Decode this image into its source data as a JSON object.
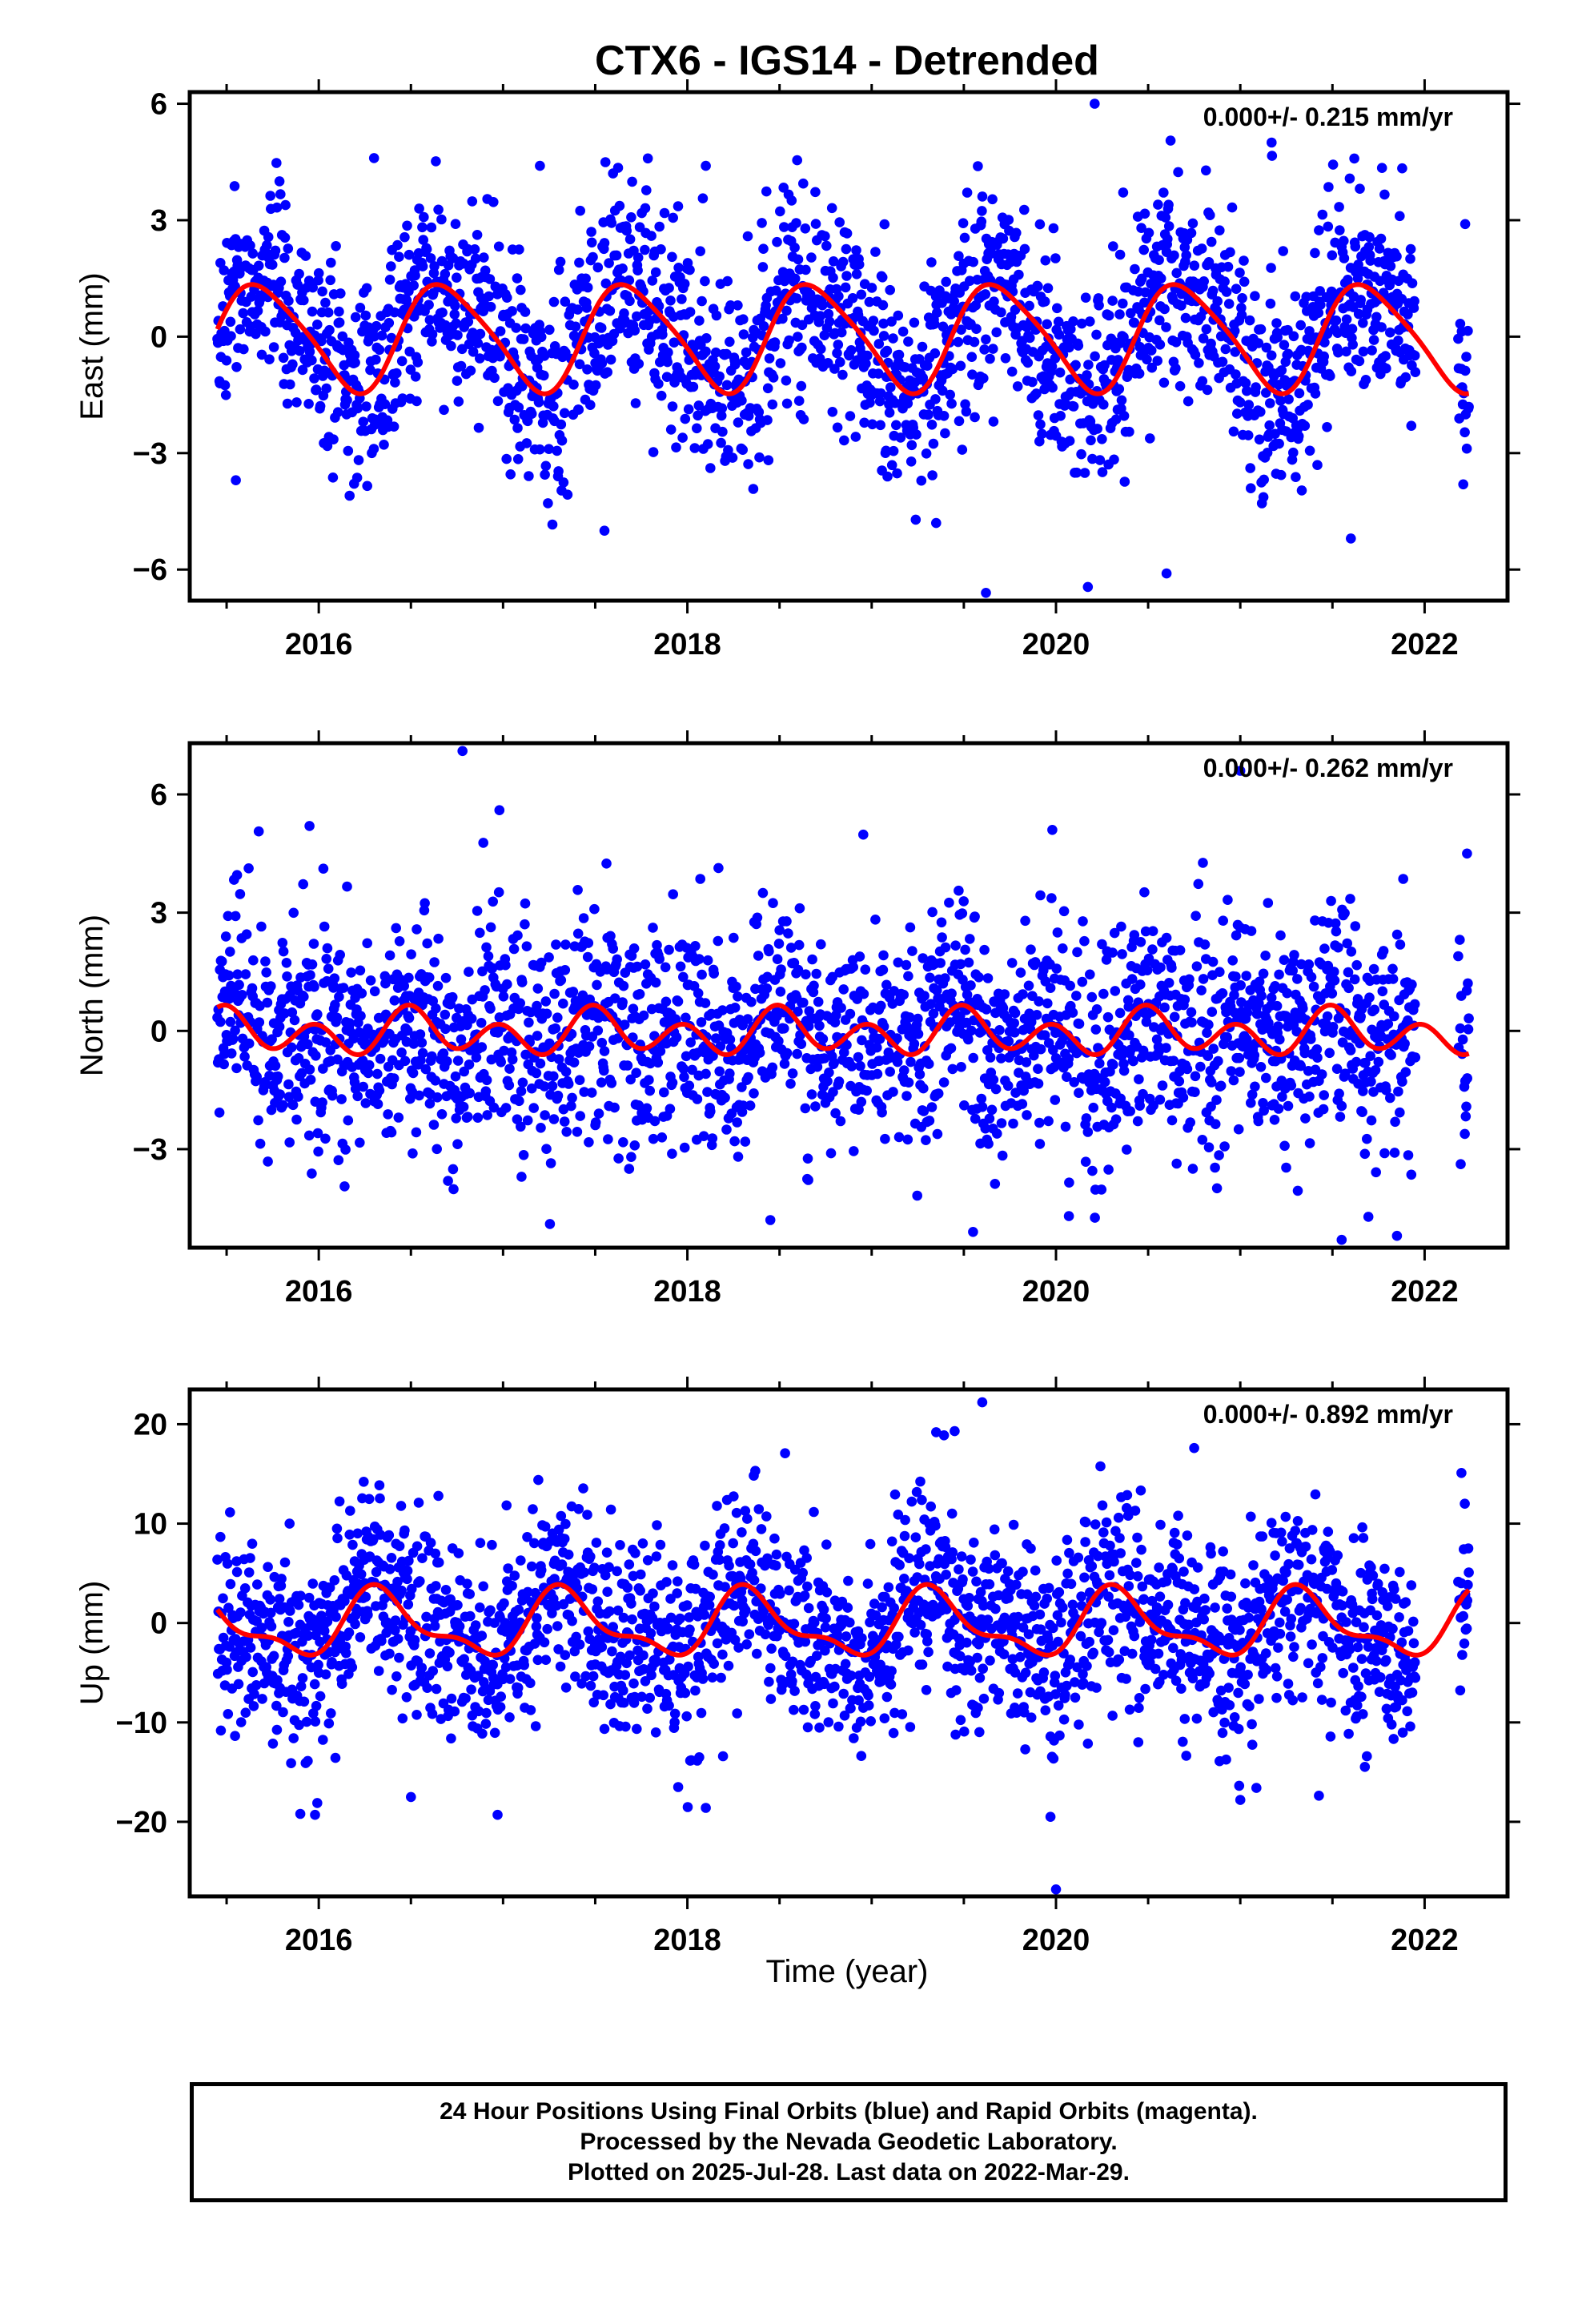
{
  "title": "CTX6 - IGS14 - Detrended",
  "x_label": "Time (year)",
  "footer": {
    "line1": "24 Hour Positions Using Final Orbits (blue) and Rapid Orbits (magenta).",
    "line2": "Processed by the Nevada Geodetic Laboratory.",
    "line3": "Plotted on 2025-Jul-28. Last data on 2022-Mar-29."
  },
  "colors": {
    "points": "#0000ff",
    "model": "#ff0000",
    "axes": "#000000"
  },
  "chart_data": [
    {
      "type": "scatter",
      "ylabel": "East (mm)",
      "rate_text": "0.000+/- 0.215 mm/yr",
      "xlim": [
        2015.3,
        2022.45
      ],
      "ylim": [
        -6.8,
        6.3
      ],
      "xticks": [
        2016,
        2018,
        2020,
        2022
      ],
      "yticks": [
        -6,
        -3,
        0,
        3,
        6
      ],
      "ytick_labels": [
        "−6",
        "−3",
        "0",
        "3",
        "6"
      ],
      "data_range": [
        2015.45,
        2022.24
      ],
      "scatter_sd": 1.5,
      "model": {
        "name": "seasonal fit",
        "offset": 0,
        "annual_cos": -0.5,
        "annual_sin": -1.25,
        "semi_cos": 0.2,
        "semi_sin": 0.1
      },
      "highlighted_points": [
        [
          2015.55,
          -3.7
        ],
        [
          2016.3,
          4.6
        ],
        [
          2017.2,
          4.4
        ],
        [
          2017.55,
          -5.0
        ],
        [
          2018.1,
          4.4
        ],
        [
          2019.35,
          -4.8
        ],
        [
          2019.62,
          -6.6
        ],
        [
          2020.21,
          6.0
        ],
        [
          2020.6,
          -6.1
        ],
        [
          2021.17,
          5.0
        ],
        [
          2021.6,
          -5.2
        ],
        [
          2022.22,
          2.9
        ]
      ]
    },
    {
      "type": "scatter",
      "ylabel": "North (mm)",
      "rate_text": "0.000+/- 0.262 mm/yr",
      "xlim": [
        2015.3,
        2022.45
      ],
      "ylim": [
        -5.5,
        7.3
      ],
      "xticks": [
        2016,
        2018,
        2020,
        2022
      ],
      "yticks": [
        -3,
        0,
        3,
        6
      ],
      "ytick_labels": [
        "−3",
        "0",
        "3",
        "6"
      ],
      "data_range": [
        2015.45,
        2022.24
      ],
      "scatter_sd": 1.6,
      "model": {
        "name": "seasonal fit",
        "offset": -0.05,
        "annual_cos": -0.25,
        "annual_sin": -0.05,
        "semi_cos": 0.45,
        "semi_sin": -0.1
      },
      "highlighted_points": [
        [
          2015.95,
          5.2
        ],
        [
          2016.78,
          7.1
        ],
        [
          2016.98,
          5.6
        ],
        [
          2017.1,
          -3.7
        ],
        [
          2018.45,
          -4.8
        ],
        [
          2019.55,
          -5.1
        ],
        [
          2019.98,
          5.1
        ],
        [
          2020.07,
          -4.7
        ],
        [
          2021.0,
          6.6
        ],
        [
          2021.55,
          -5.3
        ],
        [
          2021.85,
          -5.2
        ],
        [
          2022.23,
          4.5
        ]
      ]
    },
    {
      "type": "scatter",
      "ylabel": "Up (mm)",
      "rate_text": "0.000+/- 0.892 mm/yr",
      "xlim": [
        2015.3,
        2022.45
      ],
      "ylim": [
        -27.5,
        23.5
      ],
      "xticks": [
        2016,
        2018,
        2020,
        2022
      ],
      "yticks": [
        -20,
        -10,
        0,
        10,
        20
      ],
      "ytick_labels": [
        "−20",
        "−10",
        "0",
        "10",
        "20"
      ],
      "data_range": [
        2015.45,
        2022.24
      ],
      "scatter_sd": 5.5,
      "model": {
        "name": "seasonal fit",
        "offset": -0.2,
        "annual_cos": -1.6,
        "annual_sin": 2.5,
        "semi_cos": -1.2,
        "semi_sin": -0.4
      },
      "highlighted_points": [
        [
          2015.9,
          -19.2
        ],
        [
          2015.98,
          -19.3
        ],
        [
          2016.5,
          -17.5
        ],
        [
          2016.97,
          -19.3
        ],
        [
          2017.95,
          -16.5
        ],
        [
          2018.1,
          -18.6
        ],
        [
          2019.35,
          19.2
        ],
        [
          2019.45,
          19.3
        ],
        [
          2019.6,
          22.2
        ],
        [
          2019.97,
          -19.5
        ],
        [
          2020.0,
          -26.8
        ],
        [
          2020.75,
          17.6
        ],
        [
          2021.0,
          -17.8
        ],
        [
          2022.2,
          15.1
        ]
      ]
    }
  ]
}
